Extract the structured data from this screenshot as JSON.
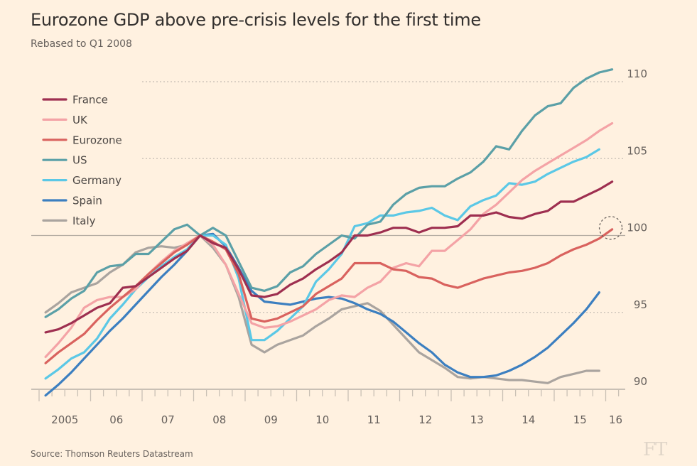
{
  "header": {
    "title": "Eurozone GDP above pre-crisis levels for the first time",
    "subtitle": "Rebased to Q1 2008"
  },
  "footer": {
    "source": "Source: Thomson Reuters Datastream",
    "logo": "FT"
  },
  "chart_data": {
    "type": "line",
    "title": "Eurozone GDP above pre-crisis levels for the first time",
    "subtitle": "Rebased to Q1 2008",
    "xlabel": "",
    "ylabel": "",
    "x_start": "2005 Q1",
    "x_frequency": "quarterly",
    "xlim": [
      2005,
      2016.5
    ],
    "ylim": [
      90,
      110
    ],
    "y_ticks": [
      {
        "value": 90,
        "label": "90"
      },
      {
        "value": 95,
        "label": "95"
      },
      {
        "value": 100,
        "label": "100"
      },
      {
        "value": 105,
        "label": "105"
      },
      {
        "value": 110,
        "label": "110"
      }
    ],
    "x_ticks": [
      {
        "year": 2005,
        "label": "2005"
      },
      {
        "year": 2006,
        "label": "06"
      },
      {
        "year": 2007,
        "label": "07"
      },
      {
        "year": 2008,
        "label": "08"
      },
      {
        "year": 2009,
        "label": "09"
      },
      {
        "year": 2010,
        "label": "10"
      },
      {
        "year": 2011,
        "label": "11"
      },
      {
        "year": 2012,
        "label": "12"
      },
      {
        "year": 2013,
        "label": "13"
      },
      {
        "year": 2014,
        "label": "14"
      },
      {
        "year": 2015,
        "label": "15"
      },
      {
        "year": 2016,
        "label": "16"
      }
    ],
    "grid": "horizontal dotted",
    "legend": "top-left",
    "annotation": {
      "type": "dashed-circle",
      "series": "Eurozone",
      "at": "2016 Q1",
      "value": 100.4
    },
    "series": [
      {
        "name": "France",
        "color": "#9e2f50",
        "values": [
          93.7,
          93.9,
          94.3,
          94.8,
          95.3,
          95.6,
          96.6,
          96.7,
          97.3,
          97.9,
          98.5,
          99.0,
          100.0,
          99.5,
          99.2,
          97.8,
          96.1,
          96.0,
          96.2,
          96.8,
          97.2,
          97.8,
          98.3,
          98.9,
          100.0,
          100.0,
          100.2,
          100.5,
          100.5,
          100.2,
          100.5,
          100.5,
          100.6,
          101.3,
          101.3,
          101.5,
          101.2,
          101.1,
          101.4,
          101.6,
          102.2,
          102.2,
          102.6,
          103.0,
          103.5
        ]
      },
      {
        "name": "UK",
        "color": "#f4a3a6",
        "values": [
          92.1,
          93.0,
          94.0,
          95.3,
          95.8,
          96.0,
          96.0,
          96.5,
          97.5,
          98.3,
          99.0,
          99.5,
          100.0,
          99.4,
          98.1,
          96.2,
          94.3,
          94.0,
          94.1,
          94.4,
          94.8,
          95.2,
          95.8,
          96.1,
          96.0,
          96.6,
          97.0,
          97.9,
          98.2,
          98.0,
          99.0,
          99.0,
          99.7,
          100.4,
          101.4,
          102.0,
          102.8,
          103.6,
          104.2,
          104.7,
          105.2,
          105.7,
          106.2,
          106.8,
          107.3
        ]
      },
      {
        "name": "Eurozone",
        "color": "#d9625e",
        "values": [
          91.7,
          92.4,
          93.0,
          93.6,
          94.5,
          95.3,
          96.0,
          96.7,
          97.5,
          98.2,
          98.9,
          99.4,
          100.0,
          99.6,
          99.1,
          97.5,
          94.6,
          94.4,
          94.6,
          95.0,
          95.4,
          96.2,
          96.7,
          97.2,
          98.2,
          98.2,
          98.2,
          97.8,
          97.7,
          97.3,
          97.2,
          96.8,
          96.6,
          96.9,
          97.2,
          97.4,
          97.6,
          97.7,
          97.9,
          98.2,
          98.7,
          99.1,
          99.4,
          99.8,
          100.4
        ]
      },
      {
        "name": "US",
        "color": "#5ba0a7",
        "values": [
          94.7,
          95.2,
          95.9,
          96.4,
          97.6,
          98.0,
          98.1,
          98.8,
          98.8,
          99.6,
          100.4,
          100.7,
          100.0,
          100.5,
          100.0,
          98.3,
          96.6,
          96.4,
          96.7,
          97.6,
          98.0,
          98.8,
          99.4,
          100.0,
          99.8,
          100.7,
          100.9,
          102.0,
          102.7,
          103.1,
          103.2,
          103.2,
          103.7,
          104.1,
          104.8,
          105.8,
          105.6,
          106.8,
          107.8,
          108.4,
          108.6,
          109.6,
          110.2,
          110.6,
          110.8
        ]
      },
      {
        "name": "Germany",
        "color": "#5bc8e6",
        "values": [
          90.7,
          91.3,
          92.0,
          92.4,
          93.3,
          94.6,
          95.5,
          96.5,
          97.3,
          98.0,
          98.6,
          99.1,
          100.0,
          100.0,
          99.4,
          97.2,
          93.2,
          93.2,
          93.8,
          94.6,
          95.4,
          97.0,
          97.8,
          98.8,
          100.6,
          100.8,
          101.3,
          101.3,
          101.5,
          101.6,
          101.8,
          101.3,
          101.0,
          101.9,
          102.3,
          102.6,
          103.4,
          103.3,
          103.5,
          104.0,
          104.4,
          104.8,
          105.1,
          105.6
        ]
      },
      {
        "name": "Spain",
        "color": "#3c7fc0",
        "values": [
          89.6,
          90.3,
          91.1,
          92.0,
          92.9,
          93.8,
          94.6,
          95.5,
          96.4,
          97.3,
          98.1,
          99.0,
          100.0,
          100.1,
          99.3,
          97.9,
          96.4,
          95.7,
          95.6,
          95.5,
          95.7,
          95.9,
          96.0,
          95.9,
          95.6,
          95.2,
          94.9,
          94.4,
          93.7,
          93.0,
          92.4,
          91.6,
          91.1,
          90.8,
          90.8,
          90.9,
          91.2,
          91.6,
          92.1,
          92.7,
          93.5,
          94.3,
          95.2,
          96.3
        ]
      },
      {
        "name": "Italy",
        "color": "#aaa49f",
        "values": [
          95.0,
          95.6,
          96.3,
          96.6,
          96.9,
          97.6,
          98.1,
          98.9,
          99.2,
          99.3,
          99.2,
          99.4,
          100.0,
          99.2,
          98.1,
          96.0,
          92.9,
          92.4,
          92.9,
          93.2,
          93.5,
          94.1,
          94.6,
          95.2,
          95.4,
          95.6,
          95.1,
          94.2,
          93.3,
          92.4,
          91.9,
          91.4,
          90.8,
          90.7,
          90.8,
          90.7,
          90.6,
          90.6,
          90.5,
          90.4,
          90.8,
          91.0,
          91.2,
          91.2
        ]
      }
    ]
  }
}
